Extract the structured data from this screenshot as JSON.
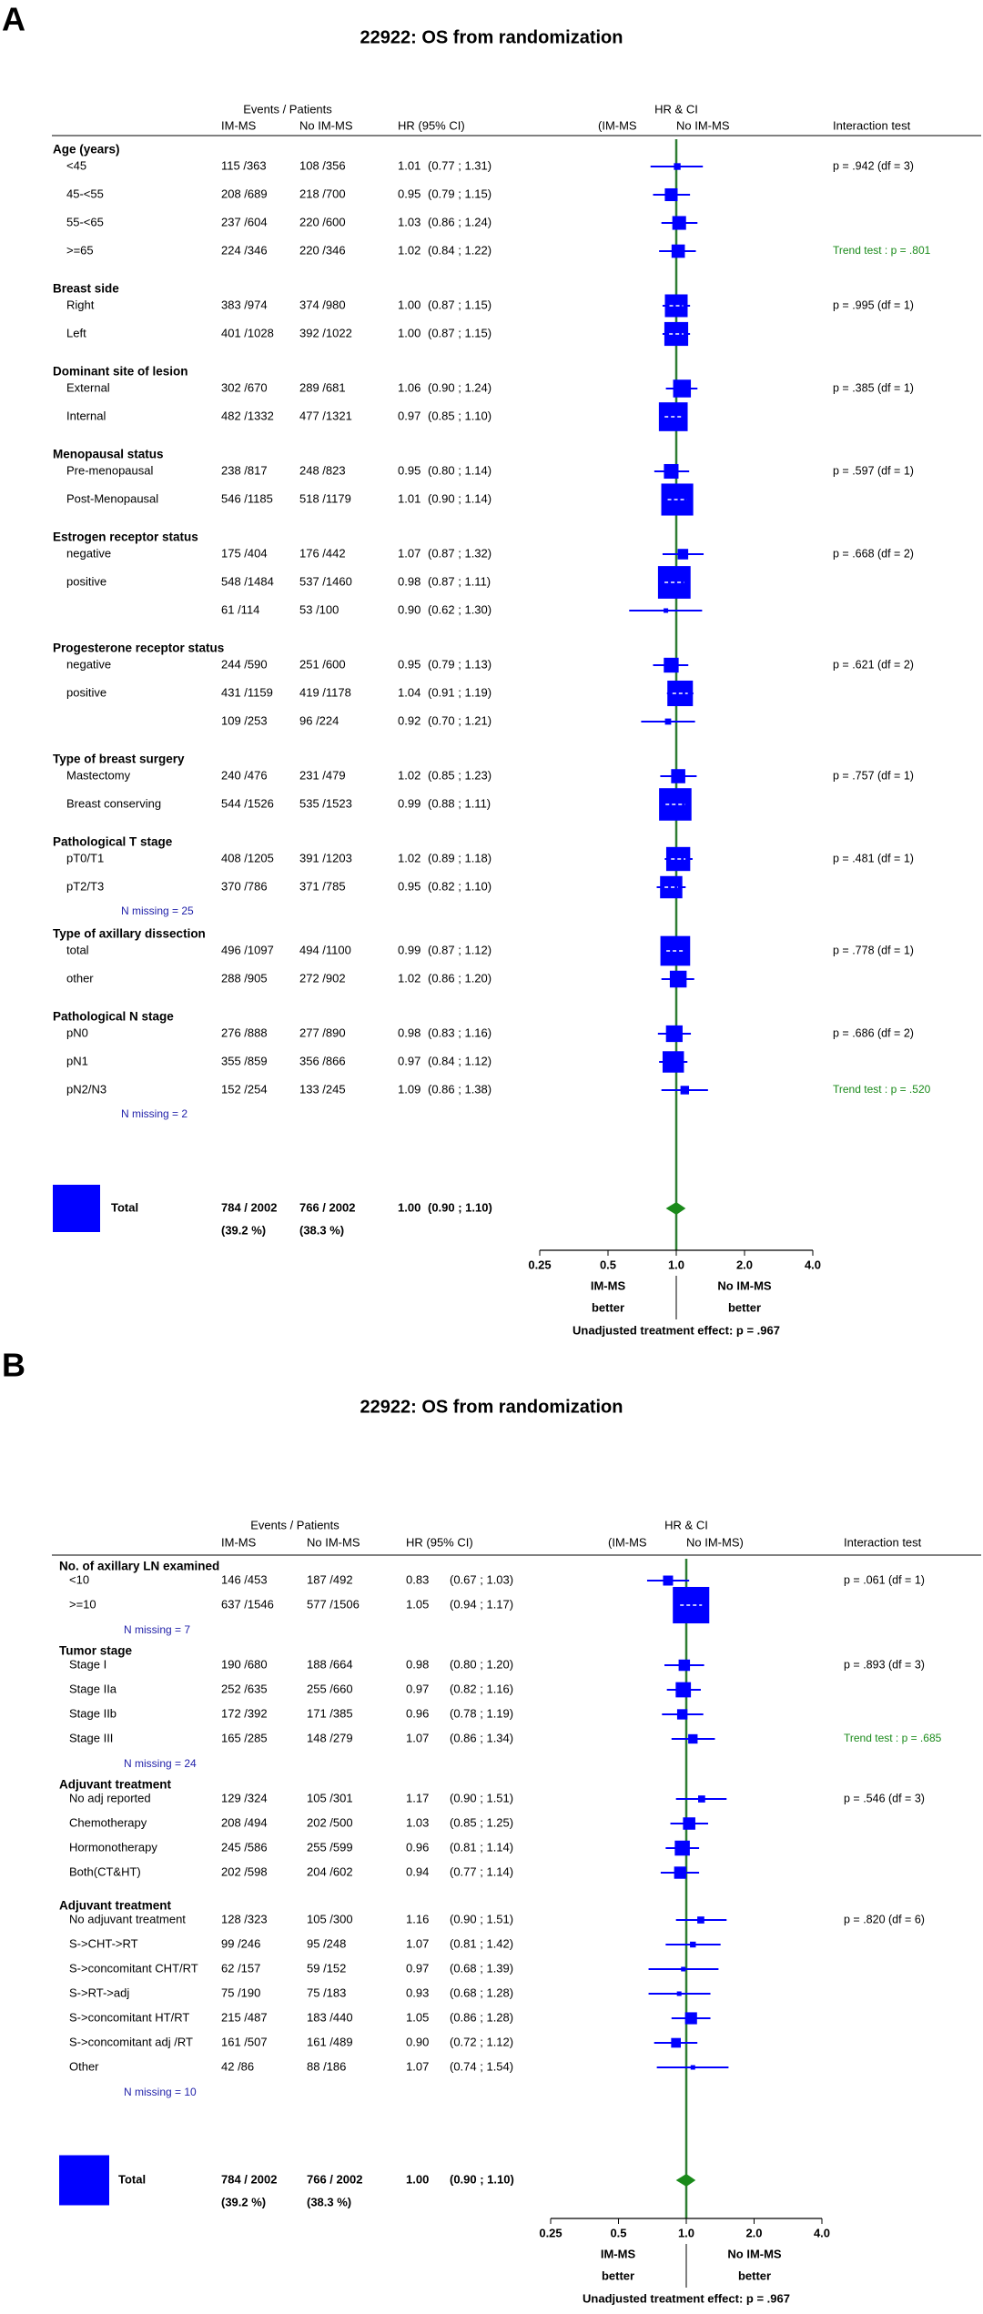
{
  "chart_data": [
    {
      "panel": "A",
      "type": "forest",
      "title": "22922: OS from randomization",
      "headers": {
        "events": "Events / Patients",
        "arm1": "IM-MS",
        "arm2": "No IM-MS",
        "hr": "HR (95% CI)",
        "plot": "HR & CI",
        "plot_left": "(IM-MS",
        "plot_right": "No IM-MS",
        "interaction": "Interaction test"
      },
      "groups": [
        {
          "title": "Age (years)",
          "rows": [
            {
              "label": "<45",
              "arm1": "115 /363",
              "arm2": "108 /356",
              "hr": 1.01,
              "hr_label": "1.01",
              "ci": [
                0.77,
                1.31
              ],
              "ci_label": "(0.77 ; 1.31)",
              "test": "p = .942 (df = 3)"
            },
            {
              "label": "45-<55",
              "arm1": "208 /689",
              "arm2": "218 /700",
              "hr": 0.95,
              "hr_label": "0.95",
              "ci": [
                0.79,
                1.15
              ],
              "ci_label": "(0.79 ; 1.15)"
            },
            {
              "label": "55-<65",
              "arm1": "237 /604",
              "arm2": "220 /600",
              "hr": 1.03,
              "hr_label": "1.03",
              "ci": [
                0.86,
                1.24
              ],
              "ci_label": "(0.86 ; 1.24)"
            },
            {
              "label": ">=65",
              "arm1": "224 /346",
              "arm2": "220 /346",
              "hr": 1.02,
              "hr_label": "1.02",
              "ci": [
                0.84,
                1.22
              ],
              "ci_label": "(0.84 ; 1.22)",
              "trend": "Trend test : p = .801"
            }
          ]
        },
        {
          "title": "Breast side",
          "rows": [
            {
              "label": "Right",
              "arm1": "383 /974",
              "arm2": "374 /980",
              "hr": 1.0,
              "hr_label": "1.00",
              "ci": [
                0.87,
                1.15
              ],
              "ci_label": "(0.87 ; 1.15)",
              "test": "p = .995 (df = 1)"
            },
            {
              "label": "Left",
              "arm1": "401 /1028",
              "arm2": "392 /1022",
              "hr": 1.0,
              "hr_label": "1.00",
              "ci": [
                0.87,
                1.15
              ],
              "ci_label": "(0.87 ; 1.15)"
            }
          ]
        },
        {
          "title": "Dominant site of lesion",
          "rows": [
            {
              "label": "External",
              "arm1": "302 /670",
              "arm2": "289 /681",
              "hr": 1.06,
              "hr_label": "1.06",
              "ci": [
                0.9,
                1.24
              ],
              "ci_label": "(0.90 ; 1.24)",
              "test": "p = .385 (df = 1)"
            },
            {
              "label": "Internal",
              "arm1": "482 /1332",
              "arm2": "477 /1321",
              "hr": 0.97,
              "hr_label": "0.97",
              "ci": [
                0.85,
                1.1
              ],
              "ci_label": "(0.85 ; 1.10)"
            }
          ]
        },
        {
          "title": "Menopausal status",
          "rows": [
            {
              "label": "Pre-menopausal",
              "arm1": "238 /817",
              "arm2": "248 /823",
              "hr": 0.95,
              "hr_label": "0.95",
              "ci": [
                0.8,
                1.14
              ],
              "ci_label": "(0.80 ; 1.14)",
              "test": "p = .597 (df = 1)"
            },
            {
              "label": "Post-Menopausal",
              "arm1": "546 /1185",
              "arm2": "518 /1179",
              "hr": 1.01,
              "hr_label": "1.01",
              "ci": [
                0.9,
                1.14
              ],
              "ci_label": "(0.90 ; 1.14)"
            }
          ]
        },
        {
          "title": "Estrogen receptor status",
          "rows": [
            {
              "label": "negative",
              "arm1": "175 /404",
              "arm2": "176 /442",
              "hr": 1.07,
              "hr_label": "1.07",
              "ci": [
                0.87,
                1.32
              ],
              "ci_label": "(0.87 ; 1.32)",
              "test": "p = .668 (df = 2)"
            },
            {
              "label": "positive",
              "arm1": "548 /1484",
              "arm2": "537 /1460",
              "hr": 0.98,
              "hr_label": "0.98",
              "ci": [
                0.87,
                1.11
              ],
              "ci_label": "(0.87 ; 1.11)"
            },
            {
              "label": null,
              "arm1": "61 /114",
              "arm2": "53 /100",
              "hr": 0.9,
              "hr_label": "0.90",
              "ci": [
                0.62,
                1.3
              ],
              "ci_label": "(0.62 ; 1.30)"
            }
          ]
        },
        {
          "title": "Progesterone receptor status",
          "rows": [
            {
              "label": "negative",
              "arm1": "244 /590",
              "arm2": "251 /600",
              "hr": 0.95,
              "hr_label": "0.95",
              "ci": [
                0.79,
                1.13
              ],
              "ci_label": "(0.79 ; 1.13)",
              "test": "p = .621 (df = 2)"
            },
            {
              "label": "positive",
              "arm1": "431 /1159",
              "arm2": "419 /1178",
              "hr": 1.04,
              "hr_label": "1.04",
              "ci": [
                0.91,
                1.19
              ],
              "ci_label": "(0.91 ; 1.19)"
            },
            {
              "label": null,
              "arm1": "109 /253",
              "arm2": "96 /224",
              "hr": 0.92,
              "hr_label": "0.92",
              "ci": [
                0.7,
                1.21
              ],
              "ci_label": "(0.70 ; 1.21)"
            }
          ]
        },
        {
          "title": "Type of breast surgery",
          "rows": [
            {
              "label": "Mastectomy",
              "arm1": "240 /476",
              "arm2": "231 /479",
              "hr": 1.02,
              "hr_label": "1.02",
              "ci": [
                0.85,
                1.23
              ],
              "ci_label": "(0.85 ; 1.23)",
              "test": "p = .757 (df = 1)"
            },
            {
              "label": "Breast conserving",
              "arm1": "544 /1526",
              "arm2": "535 /1523",
              "hr": 0.99,
              "hr_label": "0.99",
              "ci": [
                0.88,
                1.11
              ],
              "ci_label": "(0.88 ; 1.11)"
            }
          ]
        },
        {
          "title": "Pathological T stage",
          "rows": [
            {
              "label": "pT0/T1",
              "arm1": "408 /1205",
              "arm2": "391 /1203",
              "hr": 1.02,
              "hr_label": "1.02",
              "ci": [
                0.89,
                1.18
              ],
              "ci_label": "(0.89 ; 1.18)",
              "test": "p = .481 (df = 1)"
            },
            {
              "label": "pT2/T3",
              "arm1": "370 /786",
              "arm2": "371 /785",
              "hr": 0.95,
              "hr_label": "0.95",
              "ci": [
                0.82,
                1.1
              ],
              "ci_label": "(0.82 ; 1.10)"
            }
          ],
          "note": "N missing = 25"
        },
        {
          "title": "Type of axillary dissection",
          "rows": [
            {
              "label": "total",
              "arm1": "496 /1097",
              "arm2": "494 /1100",
              "hr": 0.99,
              "hr_label": "0.99",
              "ci": [
                0.87,
                1.12
              ],
              "ci_label": "(0.87 ; 1.12)",
              "test": "p = .778 (df = 1)"
            },
            {
              "label": "other",
              "arm1": "288 /905",
              "arm2": "272 /902",
              "hr": 1.02,
              "hr_label": "1.02",
              "ci": [
                0.86,
                1.2
              ],
              "ci_label": "(0.86 ; 1.20)"
            }
          ]
        },
        {
          "title": "Pathological N stage",
          "rows": [
            {
              "label": "pN0",
              "arm1": "276 /888",
              "arm2": "277 /890",
              "hr": 0.98,
              "hr_label": "0.98",
              "ci": [
                0.83,
                1.16
              ],
              "ci_label": "(0.83 ; 1.16)",
              "test": "p = .686 (df = 2)"
            },
            {
              "label": "pN1",
              "arm1": "355 /859",
              "arm2": "356 /866",
              "hr": 0.97,
              "hr_label": "0.97",
              "ci": [
                0.84,
                1.12
              ],
              "ci_label": "(0.84 ; 1.12)"
            },
            {
              "label": "pN2/N3",
              "arm1": "152 /254",
              "arm2": "133 /245",
              "hr": 1.09,
              "hr_label": "1.09",
              "ci": [
                0.86,
                1.38
              ],
              "ci_label": "(0.86 ; 1.38)",
              "trend": "Trend test : p = .520"
            }
          ],
          "note": "N missing = 2"
        }
      ],
      "total": {
        "label": "Total",
        "arm1": "784 / 2002",
        "arm2": "766 / 2002",
        "arm1_pct": "(39.2 %)",
        "arm2_pct": "(38.3 %)",
        "hr": 1.0,
        "hr_label": "1.00",
        "ci": [
          0.9,
          1.1
        ],
        "ci_label": "(0.90 ; 1.10)"
      },
      "xlim": [
        0.25,
        4
      ],
      "log": true,
      "xticks": [
        0.25,
        0.5,
        {
          "value": 1,
          "label": "1.0"
        },
        {
          "value": 2,
          "label": "2.0"
        },
        {
          "value": 4,
          "label": "4.0"
        }
      ],
      "color": "#0000ff",
      "ref_color": "#2e7d32",
      "favours_left": [
        "IM-MS",
        "better"
      ],
      "favours_right": [
        "No IM-MS",
        "better"
      ],
      "footnote": "Unadjusted treatment effect: p = .967"
    },
    {
      "panel": "B",
      "type": "forest",
      "title": "22922: OS from randomization",
      "headers": {
        "events": "Events / Patients",
        "arm1": "IM-MS",
        "arm2": "No IM-MS",
        "hr": "HR (95% CI)",
        "plot": "HR & CI",
        "plot_left": "(IM-MS",
        "plot_right": "No IM-MS)",
        "interaction": "Interaction test"
      },
      "groups": [
        {
          "title": "No. of axillary LN examined",
          "rows": [
            {
              "label": "<10",
              "arm1": "146 /453",
              "arm2": "187 /492",
              "hr": 0.83,
              "hr_label": "0.83",
              "ci": [
                0.67,
                1.03
              ],
              "ci_label": "(0.67 ; 1.03)",
              "test": "p = .061 (df = 1)"
            },
            {
              "label": ">=10",
              "arm1": "637 /1546",
              "arm2": "577 /1506",
              "hr": 1.05,
              "hr_label": "1.05",
              "ci": [
                0.94,
                1.17
              ],
              "ci_label": "(0.94 ; 1.17)"
            }
          ],
          "note": "N missing = 7"
        },
        {
          "title": "Tumor stage",
          "rows": [
            {
              "label": "Stage I",
              "arm1": "190 /680",
              "arm2": "188 /664",
              "hr": 0.98,
              "hr_label": "0.98",
              "ci": [
                0.8,
                1.2
              ],
              "ci_label": "(0.80 ; 1.20)",
              "test": "p = .893 (df = 3)"
            },
            {
              "label": "Stage IIa",
              "arm1": "252 /635",
              "arm2": "255 /660",
              "hr": 0.97,
              "hr_label": "0.97",
              "ci": [
                0.82,
                1.16
              ],
              "ci_label": "(0.82 ; 1.16)"
            },
            {
              "label": "Stage IIb",
              "arm1": "172 /392",
              "arm2": "171 /385",
              "hr": 0.96,
              "hr_label": "0.96",
              "ci": [
                0.78,
                1.19
              ],
              "ci_label": "(0.78 ; 1.19)"
            },
            {
              "label": "Stage III",
              "arm1": "165 /285",
              "arm2": "148 /279",
              "hr": 1.07,
              "hr_label": "1.07",
              "ci": [
                0.86,
                1.34
              ],
              "ci_label": "(0.86 ; 1.34)",
              "trend": "Trend test : p = .685"
            }
          ],
          "note": "N missing = 24"
        },
        {
          "title": "Adjuvant treatment",
          "rows": [
            {
              "label": "No adj reported",
              "arm1": "129 /324",
              "arm2": "105 /301",
              "hr": 1.17,
              "hr_label": "1.17",
              "ci": [
                0.9,
                1.51
              ],
              "ci_label": "(0.90 ; 1.51)",
              "test": "p = .546 (df = 3)"
            },
            {
              "label": "Chemotherapy",
              "arm1": "208 /494",
              "arm2": "202 /500",
              "hr": 1.03,
              "hr_label": "1.03",
              "ci": [
                0.85,
                1.25
              ],
              "ci_label": "(0.85 ; 1.25)"
            },
            {
              "label": "Hormonotherapy",
              "arm1": "245 /586",
              "arm2": "255 /599",
              "hr": 0.96,
              "hr_label": "0.96",
              "ci": [
                0.81,
                1.14
              ],
              "ci_label": "(0.81 ; 1.14)"
            },
            {
              "label": "Both(CT&HT)",
              "arm1": "202 /598",
              "arm2": "204 /602",
              "hr": 0.94,
              "hr_label": "0.94",
              "ci": [
                0.77,
                1.14
              ],
              "ci_label": "(0.77 ; 1.14)"
            }
          ]
        },
        {
          "title": "Adjuvant treatment",
          "rows": [
            {
              "label": "No adjuvant treatment",
              "arm1": "128 /323",
              "arm2": "105 /300",
              "hr": 1.16,
              "hr_label": "1.16",
              "ci": [
                0.9,
                1.51
              ],
              "ci_label": "(0.90 ; 1.51)",
              "test": "p = .820 (df = 6)"
            },
            {
              "label": "S->CHT->RT",
              "arm1": "99 /246",
              "arm2": "95 /248",
              "hr": 1.07,
              "hr_label": "1.07",
              "ci": [
                0.81,
                1.42
              ],
              "ci_label": "(0.81 ; 1.42)"
            },
            {
              "label": "S->concomitant CHT/RT",
              "arm1": "62 /157",
              "arm2": "59 /152",
              "hr": 0.97,
              "hr_label": "0.97",
              "ci": [
                0.68,
                1.39
              ],
              "ci_label": "(0.68 ; 1.39)"
            },
            {
              "label": "S->RT->adj",
              "arm1": "75 /190",
              "arm2": "75 /183",
              "hr": 0.93,
              "hr_label": "0.93",
              "ci": [
                0.68,
                1.28
              ],
              "ci_label": "(0.68 ; 1.28)"
            },
            {
              "label": "S->concomitant HT/RT",
              "arm1": "215 /487",
              "arm2": "183 /440",
              "hr": 1.05,
              "hr_label": "1.05",
              "ci": [
                0.86,
                1.28
              ],
              "ci_label": "(0.86 ; 1.28)"
            },
            {
              "label": "S->concomitant adj /RT",
              "arm1": "161 /507",
              "arm2": "161 /489",
              "hr": 0.9,
              "hr_label": "0.90",
              "ci": [
                0.72,
                1.12
              ],
              "ci_label": "(0.72 ; 1.12)"
            },
            {
              "label": "Other",
              "arm1": "42 /86",
              "arm2": "88 /186",
              "hr": 1.07,
              "hr_label": "1.07",
              "ci": [
                0.74,
                1.54
              ],
              "ci_label": "(0.74 ; 1.54)"
            }
          ],
          "note": "N missing = 10"
        }
      ],
      "total": {
        "label": "Total",
        "arm1": "784 / 2002",
        "arm2": "766 / 2002",
        "arm1_pct": "(39.2 %)",
        "arm2_pct": "(38.3 %)",
        "hr": 1.0,
        "hr_label": "1.00",
        "ci": [
          0.9,
          1.1
        ],
        "ci_label": "(0.90 ; 1.10)"
      },
      "xlim": [
        0.25,
        4
      ],
      "log": true,
      "xticks": [
        0.25,
        0.5,
        {
          "value": 1,
          "label": "1.0"
        },
        {
          "value": 2,
          "label": "2.0"
        },
        {
          "value": 4,
          "label": "4.0"
        }
      ],
      "color": "#0000ff",
      "ref_color": "#2e7d32",
      "favours_left": [
        "IM-MS",
        "better"
      ],
      "favours_right": [
        "No IM-MS",
        "better"
      ],
      "footnote": "Unadjusted treatment effect: p = .967"
    }
  ]
}
